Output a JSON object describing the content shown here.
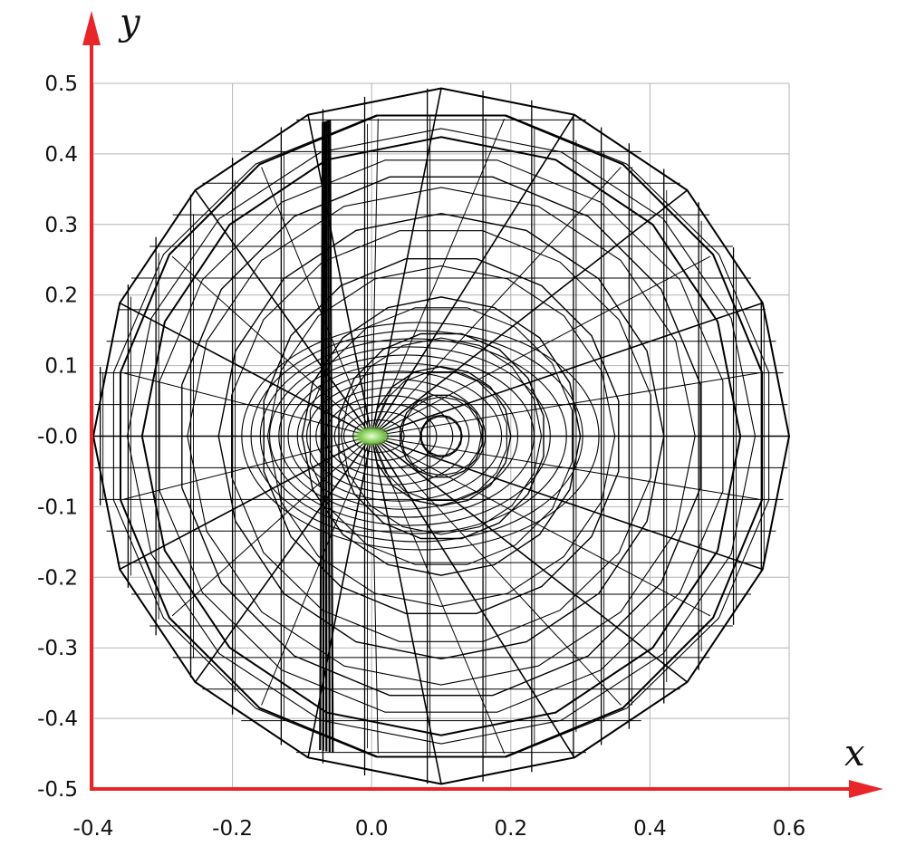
{
  "chart_data": {
    "type": "diagram",
    "title": "",
    "xlabel": "x",
    "ylabel": "y",
    "xlim": [
      -0.4,
      0.6
    ],
    "ylim": [
      -0.5,
      0.5
    ],
    "x_ticks": [
      "-0.4",
      "-0.2",
      "0.0",
      "0.2",
      "0.4",
      "0.6"
    ],
    "y_ticks": [
      "0.5",
      "0.4",
      "0.3",
      "0.2",
      "0.1",
      "-0.0",
      "-0.1",
      "-0.2",
      "-0.3",
      "-0.4",
      "-0.5"
    ],
    "grid": true,
    "axis_color": "#e8262a",
    "mesh_color": "#000000",
    "highlight_color": "#7ec850",
    "mesh": {
      "description": "wireframe sphere mesh viewed along z",
      "center": [
        0.1,
        0.0
      ],
      "outer_radius": 0.5,
      "latitude_rings_data_radii": [
        0.5,
        0.47,
        0.43,
        0.38,
        0.32,
        0.26,
        0.2,
        0.15,
        0.1,
        0.06,
        0.03
      ],
      "meridian_x_positions": [
        -0.39,
        -0.35,
        -0.31,
        -0.26,
        -0.2,
        -0.13,
        -0.07,
        -0.01,
        0.08,
        0.16,
        0.23,
        0.29,
        0.33,
        0.37,
        0.42,
        0.47,
        0.52,
        0.56,
        0.6
      ],
      "spokes": 16
    }
  }
}
